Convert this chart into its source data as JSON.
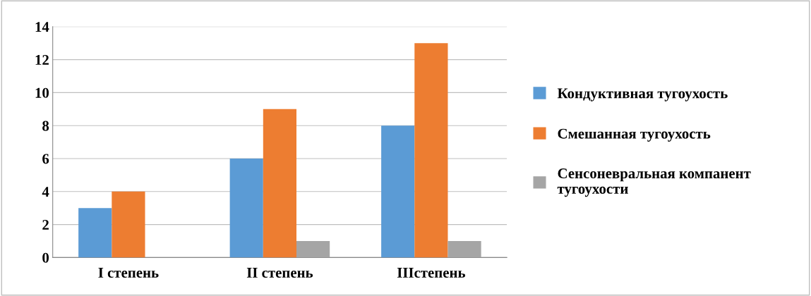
{
  "chart_data": {
    "type": "bar",
    "categories": [
      "I степень",
      "II степень",
      "IIIстепень"
    ],
    "series": [
      {
        "name": "Кондуктивная тугоухость",
        "color": "#5b9bd5",
        "values": [
          3,
          6,
          8
        ]
      },
      {
        "name": "Смешанная тугоухость",
        "color": "#ed7d31",
        "values": [
          4,
          9,
          13
        ]
      },
      {
        "name": "Сенсоневральная компанент тугоухости",
        "color": "#a5a5a5",
        "values": [
          0,
          1,
          1
        ]
      }
    ],
    "ylim": [
      0,
      14
    ],
    "yticks": [
      0,
      2,
      4,
      6,
      8,
      10,
      12,
      14
    ],
    "grid": "y",
    "legend": "right"
  }
}
